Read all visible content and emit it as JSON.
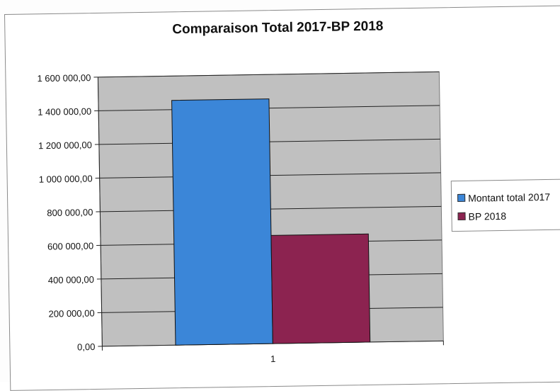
{
  "chart_data": {
    "type": "bar",
    "title": "Comparaison Total 2017-BP 2018",
    "categories": [
      "1"
    ],
    "series": [
      {
        "name": "Montant total 2017",
        "values": [
          1455000
        ],
        "color": "#3b86d8"
      },
      {
        "name": "BP 2018",
        "values": [
          643000
        ],
        "color": "#8c2350"
      }
    ],
    "ylim": [
      0,
      1600000
    ],
    "yticks": [
      "0,00",
      "200 000,00",
      "400 000,00",
      "600 000,00",
      "800 000,00",
      "1 000 000,00",
      "1 200 000,00",
      "1 400 000,00",
      "1 600 000,00"
    ],
    "xlabel": "",
    "ylabel": "",
    "grid": true,
    "legend_position": "right",
    "plot_background": "#c0c0c0"
  }
}
